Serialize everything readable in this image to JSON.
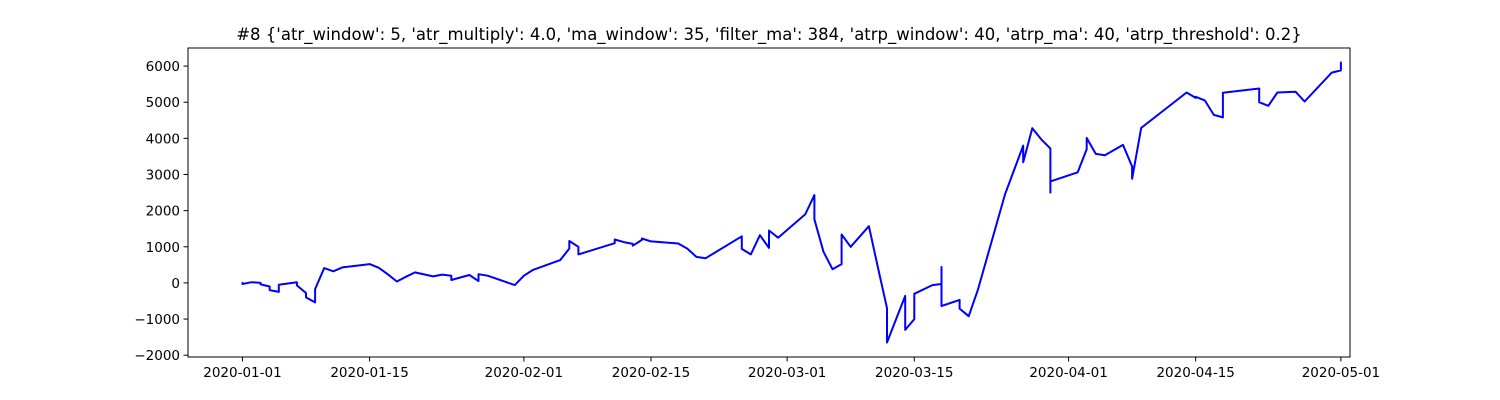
{
  "chart_data": {
    "type": "line",
    "title": "#8 {'atr_window': 5, 'atr_multiply': 4.0, 'ma_window': 35, 'filter_ma': 384, 'atrp_window': 40, 'atrp_ma': 40, 'atrp_threshold': 0.2}",
    "xlabel": "",
    "ylabel": "",
    "x_axis_type": "date",
    "xlim": [
      "2019-12-26",
      "2020-05-02"
    ],
    "ylim": [
      -2050,
      6500
    ],
    "x_ticks": [
      "2020-01-01",
      "2020-01-15",
      "2020-02-01",
      "2020-02-15",
      "2020-03-01",
      "2020-03-15",
      "2020-04-01",
      "2020-04-15",
      "2020-05-01"
    ],
    "y_ticks": [
      -2000,
      -1000,
      0,
      1000,
      2000,
      3000,
      4000,
      5000,
      6000
    ],
    "grid": false,
    "legend": "none",
    "colors": {
      "line": "#0000ff",
      "axes": "#000000",
      "background": "#ffffff"
    },
    "series": [
      {
        "values": [
          [
            "2020-01-01",
            0
          ],
          [
            "2020-01-01",
            -30
          ],
          [
            "2020-01-02",
            20
          ],
          [
            "2020-01-03",
            0
          ],
          [
            "2020-01-03",
            -40
          ],
          [
            "2020-01-04",
            -100
          ],
          [
            "2020-01-04",
            -200
          ],
          [
            "2020-01-05",
            -250
          ],
          [
            "2020-01-05",
            -50
          ],
          [
            "2020-01-07",
            20
          ],
          [
            "2020-01-07",
            -70
          ],
          [
            "2020-01-08",
            -280
          ],
          [
            "2020-01-08",
            -400
          ],
          [
            "2020-01-09",
            -540
          ],
          [
            "2020-01-09",
            -170
          ],
          [
            "2020-01-10",
            410
          ],
          [
            "2020-01-11",
            320
          ],
          [
            "2020-01-12",
            430
          ],
          [
            "2020-01-14",
            490
          ],
          [
            "2020-01-15",
            520
          ],
          [
            "2020-01-16",
            420
          ],
          [
            "2020-01-17",
            240
          ],
          [
            "2020-01-18",
            40
          ],
          [
            "2020-01-19",
            170
          ],
          [
            "2020-01-20",
            290
          ],
          [
            "2020-01-22",
            180
          ],
          [
            "2020-01-23",
            230
          ],
          [
            "2020-01-24",
            200
          ],
          [
            "2020-01-24",
            80
          ],
          [
            "2020-01-26",
            220
          ],
          [
            "2020-01-27",
            50
          ],
          [
            "2020-01-27",
            240
          ],
          [
            "2020-01-28",
            200
          ],
          [
            "2020-01-31",
            -60
          ],
          [
            "2020-02-01",
            200
          ],
          [
            "2020-02-02",
            360
          ],
          [
            "2020-02-05",
            630
          ],
          [
            "2020-02-06",
            950
          ],
          [
            "2020-02-06",
            1160
          ],
          [
            "2020-02-07",
            1000
          ],
          [
            "2020-02-07",
            790
          ],
          [
            "2020-02-11",
            1100
          ],
          [
            "2020-02-11",
            1200
          ],
          [
            "2020-02-12",
            1130
          ],
          [
            "2020-02-13",
            1080
          ],
          [
            "2020-02-13",
            1030
          ],
          [
            "2020-02-14",
            1190
          ],
          [
            "2020-02-14",
            1230
          ],
          [
            "2020-02-15",
            1150
          ],
          [
            "2020-02-18",
            1090
          ],
          [
            "2020-02-19",
            950
          ],
          [
            "2020-02-20",
            720
          ],
          [
            "2020-02-21",
            680
          ],
          [
            "2020-02-25",
            1290
          ],
          [
            "2020-02-25",
            940
          ],
          [
            "2020-02-26",
            790
          ],
          [
            "2020-02-27",
            1320
          ],
          [
            "2020-02-28",
            970
          ],
          [
            "2020-02-28",
            1450
          ],
          [
            "2020-02-29",
            1250
          ],
          [
            "2020-03-03",
            1900
          ],
          [
            "2020-03-04",
            2430
          ],
          [
            "2020-03-04",
            1760
          ],
          [
            "2020-03-05",
            860
          ],
          [
            "2020-03-06",
            380
          ],
          [
            "2020-03-07",
            520
          ],
          [
            "2020-03-07",
            1340
          ],
          [
            "2020-03-08",
            1000
          ],
          [
            "2020-03-10",
            1570
          ],
          [
            "2020-03-11",
            430
          ],
          [
            "2020-03-12",
            -700
          ],
          [
            "2020-03-12",
            -1650
          ],
          [
            "2020-03-14",
            -360
          ],
          [
            "2020-03-14",
            -1300
          ],
          [
            "2020-03-15",
            -1000
          ],
          [
            "2020-03-15",
            -300
          ],
          [
            "2020-03-17",
            -60
          ],
          [
            "2020-03-18",
            -30
          ],
          [
            "2020-03-18",
            440
          ],
          [
            "2020-03-18",
            -640
          ],
          [
            "2020-03-20",
            -470
          ],
          [
            "2020-03-20",
            -710
          ],
          [
            "2020-03-21",
            -920
          ],
          [
            "2020-03-22",
            -200
          ],
          [
            "2020-03-25",
            2450
          ],
          [
            "2020-03-27",
            3800
          ],
          [
            "2020-03-27",
            3340
          ],
          [
            "2020-03-28",
            4280
          ],
          [
            "2020-03-29",
            3970
          ],
          [
            "2020-03-30",
            3720
          ],
          [
            "2020-03-30",
            2500
          ],
          [
            "2020-03-30",
            2810
          ],
          [
            "2020-04-02",
            3060
          ],
          [
            "2020-04-03",
            3700
          ],
          [
            "2020-04-03",
            4010
          ],
          [
            "2020-04-04",
            3570
          ],
          [
            "2020-04-05",
            3530
          ],
          [
            "2020-04-07",
            3820
          ],
          [
            "2020-04-08",
            3220
          ],
          [
            "2020-04-08",
            2880
          ],
          [
            "2020-04-09",
            4290
          ],
          [
            "2020-04-14",
            5270
          ],
          [
            "2020-04-15",
            5120
          ],
          [
            "2020-04-15",
            5150
          ],
          [
            "2020-04-16",
            5050
          ],
          [
            "2020-04-17",
            4650
          ],
          [
            "2020-04-18",
            4580
          ],
          [
            "2020-04-18",
            5260
          ],
          [
            "2020-04-22",
            5380
          ],
          [
            "2020-04-22",
            5000
          ],
          [
            "2020-04-23",
            4900
          ],
          [
            "2020-04-24",
            5270
          ],
          [
            "2020-04-26",
            5290
          ],
          [
            "2020-04-27",
            5020
          ],
          [
            "2020-04-30",
            5820
          ],
          [
            "2020-05-01",
            5880
          ],
          [
            "2020-05-01",
            6100
          ]
        ]
      }
    ]
  }
}
